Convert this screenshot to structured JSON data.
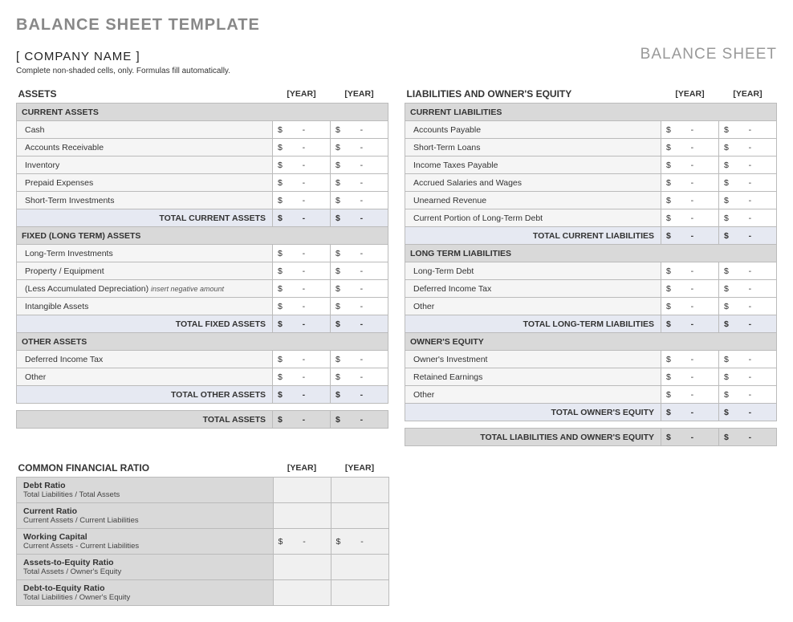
{
  "main_title": "BALANCE SHEET TEMPLATE",
  "company_name": "[ COMPANY NAME ]",
  "doc_title": "BALANCE SHEET",
  "instructions": "Complete non-shaded cells, only. Formulas fill automatically.",
  "year1": "[YEAR]",
  "year2": "[YEAR]",
  "currency": "$",
  "placeholder": "-",
  "colors": {
    "title_gray": "#888888",
    "border": "#bbbbbb",
    "subheader_bg": "#d9d9d9",
    "line_bg": "#f5f5f5",
    "total_bg": "#e6e9f2",
    "ratio_val_bg": "#f0f0f0"
  },
  "assets": {
    "title": "ASSETS",
    "sections": [
      {
        "header": "CURRENT ASSETS",
        "rows": [
          {
            "label": "Cash"
          },
          {
            "label": "Accounts Receivable"
          },
          {
            "label": "Inventory"
          },
          {
            "label": "Prepaid Expenses"
          },
          {
            "label": "Short-Term Investments"
          }
        ],
        "total": "TOTAL CURRENT ASSETS"
      },
      {
        "header": "FIXED (LONG TERM) ASSETS",
        "rows": [
          {
            "label": "Long-Term Investments"
          },
          {
            "label": "Property / Equipment"
          },
          {
            "label": "(Less Accumulated Depreciation)",
            "note": "insert negative amount"
          },
          {
            "label": "Intangible Assets"
          }
        ],
        "total": "TOTAL FIXED ASSETS"
      },
      {
        "header": "OTHER ASSETS",
        "rows": [
          {
            "label": "Deferred Income Tax"
          },
          {
            "label": "Other"
          }
        ],
        "total": "TOTAL OTHER ASSETS"
      }
    ],
    "grand_total": "TOTAL ASSETS"
  },
  "liabilities": {
    "title": "LIABILITIES AND OWNER'S EQUITY",
    "sections": [
      {
        "header": "CURRENT LIABILITIES",
        "rows": [
          {
            "label": "Accounts Payable"
          },
          {
            "label": "Short-Term Loans"
          },
          {
            "label": "Income Taxes Payable"
          },
          {
            "label": "Accrued Salaries and Wages"
          },
          {
            "label": "Unearned Revenue"
          },
          {
            "label": "Current Portion of Long-Term Debt"
          }
        ],
        "total": "TOTAL CURRENT LIABILITIES"
      },
      {
        "header": "LONG TERM LIABILITIES",
        "rows": [
          {
            "label": "Long-Term Debt"
          },
          {
            "label": "Deferred Income Tax"
          },
          {
            "label": "Other"
          }
        ],
        "total": "TOTAL LONG-TERM LIABILITIES"
      },
      {
        "header": "OWNER'S EQUITY",
        "rows": [
          {
            "label": "Owner's Investment"
          },
          {
            "label": "Retained Earnings"
          },
          {
            "label": "Other"
          }
        ],
        "total": "TOTAL OWNER'S EQUITY"
      }
    ],
    "grand_total": "TOTAL LIABILITIES AND OWNER'S EQUITY"
  },
  "ratios": {
    "title": "COMMON FINANCIAL RATIO",
    "rows": [
      {
        "name": "Debt Ratio",
        "desc": "Total Liabilities / Total Assets",
        "show_val": false
      },
      {
        "name": "Current Ratio",
        "desc": "Current Assets / Current Liabilities",
        "show_val": false
      },
      {
        "name": "Working Capital",
        "desc": "Current Assets - Current Liabilities",
        "show_val": true
      },
      {
        "name": "Assets-to-Equity Ratio",
        "desc": "Total Assets / Owner's Equity",
        "show_val": false
      },
      {
        "name": "Debt-to-Equity Ratio",
        "desc": "Total Liabilities / Owner's Equity",
        "show_val": false
      }
    ]
  }
}
